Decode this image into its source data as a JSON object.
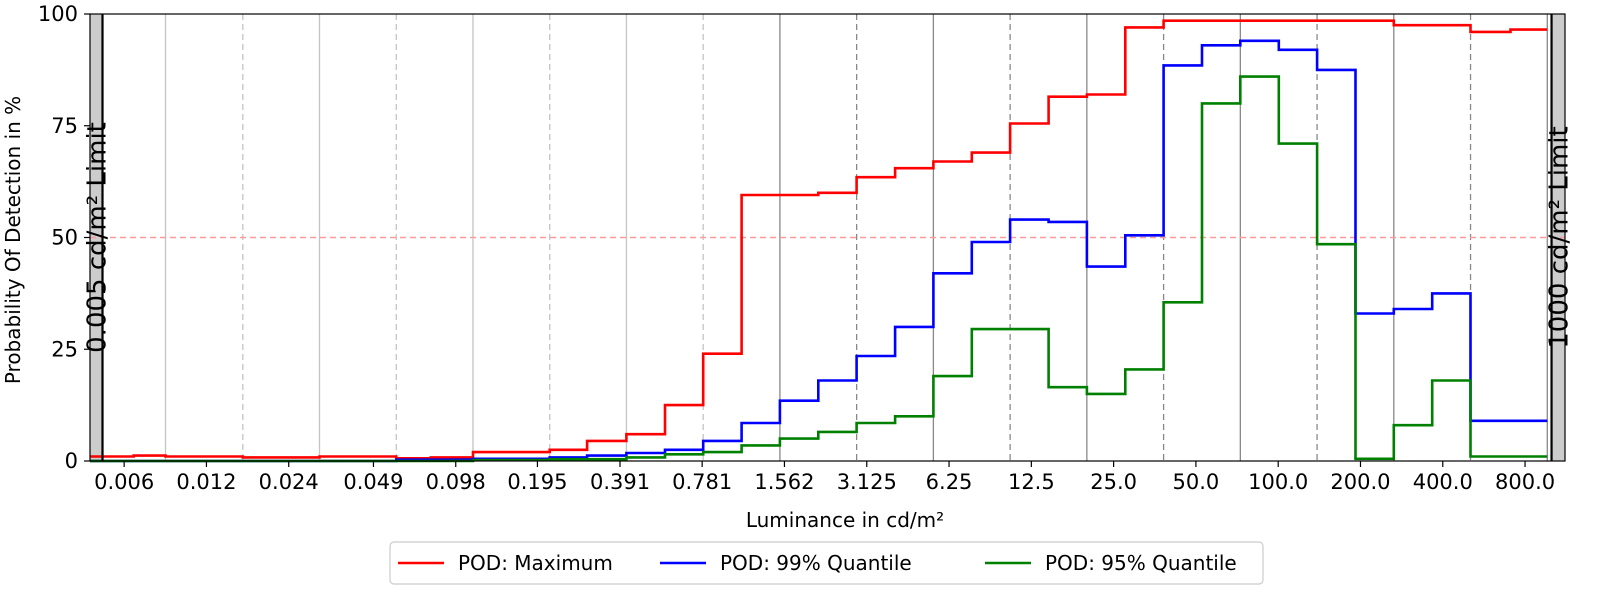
{
  "chart_data": {
    "type": "line",
    "step": true,
    "xlabel": "Luminance in cd/m²",
    "ylabel": "Probability Of Detection in %",
    "ylim": [
      0,
      100
    ],
    "y_ticks": [
      0,
      25,
      50,
      75,
      100
    ],
    "x_scale": "log2",
    "x_ticks": [
      "0.006",
      "0.012",
      "0.024",
      "0.049",
      "0.098",
      "0.195",
      "0.391",
      "0.781",
      "1.562",
      "3.125",
      "6.25",
      "12.5",
      "25.0",
      "50.0",
      "100.0",
      "200.0",
      "400.0",
      "800.0"
    ],
    "x_tick_values": [
      0.006,
      0.012,
      0.024,
      0.049,
      0.098,
      0.195,
      0.391,
      0.781,
      1.562,
      3.125,
      6.25,
      12.5,
      25.0,
      50.0,
      100.0,
      200.0,
      400.0,
      800.0
    ],
    "bin_edges": [
      0.0045,
      0.0085,
      0.0163,
      0.0311,
      0.0594,
      0.1133,
      0.2163,
      0.4127,
      0.7878,
      1.5035,
      2.8697,
      5.4774,
      10.454,
      19.953,
      38.083,
      72.688,
      138.74,
      264.81,
      505.42,
      964.67
    ],
    "threshold": {
      "value": 50,
      "style": "dashed",
      "color": "#ff9a9a"
    },
    "limits": [
      {
        "label": "0.005 cd/m² Limit",
        "x": 0.005,
        "side": "left"
      },
      {
        "label": "1000 cd/m² Limit",
        "x": 1000,
        "side": "right"
      }
    ],
    "series": [
      {
        "name": "POD: Maximum",
        "color": "#ff0000",
        "values": [
          1.2,
          1.0,
          1.0,
          1.0,
          0.8,
          2.0,
          2.5,
          4.5,
          6.0,
          12.5,
          24.0,
          59.5,
          60.0,
          63.5,
          65.5,
          67.0,
          69.0,
          75.5,
          81.5,
          82.0,
          97.0,
          98.5,
          98.5,
          98.5,
          98.5,
          98.5,
          97.5,
          96.5,
          96.5
        ]
      }
    ],
    "series_steps": [
      {
        "name": "POD: Maximum",
        "color": "#ff0000",
        "x": [
          0.0045,
          0.0065,
          0.0085,
          0.0163,
          0.0311,
          0.0594,
          0.0794,
          0.1133,
          0.2163,
          0.2962,
          0.4127,
          0.571,
          0.7878,
          1.0884,
          1.5035,
          2.0784,
          2.8697,
          3.966,
          5.4774,
          7.5716,
          10.454,
          14.452,
          19.953,
          27.579,
          38.083,
          52.646,
          72.688,
          138.74,
          264.81,
          505.42,
          707.8,
          964.67
        ],
        "y": [
          1.0,
          1.2,
          1.0,
          0.8,
          1.0,
          0.6,
          0.8,
          2.0,
          2.5,
          4.5,
          6.0,
          12.5,
          24.0,
          59.5,
          59.5,
          60.0,
          63.5,
          65.5,
          67.0,
          69.0,
          75.5,
          81.5,
          82.0,
          97.0,
          98.5,
          98.5,
          98.5,
          98.5,
          97.5,
          96.0,
          96.5,
          96.5
        ]
      },
      {
        "name": "POD: 99% Quantile",
        "color": "#0000ff",
        "x": [
          0.0045,
          0.0594,
          0.1133,
          0.2163,
          0.2962,
          0.4127,
          0.571,
          0.7878,
          1.0884,
          1.5035,
          2.0784,
          2.8697,
          3.966,
          5.4774,
          7.5716,
          10.454,
          14.452,
          19.953,
          27.579,
          38.083,
          52.646,
          72.688,
          100.5,
          138.74,
          191.8,
          264.81,
          366.0,
          505.42,
          707.8,
          964.67
        ],
        "y": [
          0.0,
          0.3,
          0.5,
          0.8,
          1.2,
          1.8,
          2.5,
          4.5,
          8.5,
          13.5,
          18.0,
          23.5,
          30.0,
          42.0,
          49.0,
          54.0,
          53.5,
          43.5,
          50.5,
          88.5,
          93.0,
          94.0,
          92.0,
          87.5,
          33.0,
          34.0,
          37.5,
          9.0,
          9.0,
          9.0
        ]
      },
      {
        "name": "POD: 95% Quantile",
        "color": "#008000",
        "x": [
          0.0045,
          0.1133,
          0.2163,
          0.4127,
          0.571,
          0.7878,
          1.0884,
          1.5035,
          2.0784,
          2.8697,
          3.966,
          5.4774,
          7.5716,
          10.454,
          14.452,
          19.953,
          27.579,
          38.083,
          52.646,
          72.688,
          100.5,
          138.74,
          191.8,
          264.81,
          366.0,
          505.42,
          707.8,
          964.67
        ],
        "y": [
          0.0,
          0.2,
          0.4,
          0.8,
          1.5,
          2.0,
          3.5,
          5.0,
          6.5,
          8.5,
          10.0,
          19.0,
          29.5,
          29.5,
          16.5,
          15.0,
          20.5,
          35.5,
          80.0,
          86.0,
          71.0,
          48.5,
          0.5,
          8.0,
          18.0,
          1.0,
          1.0,
          1.0
        ]
      }
    ],
    "legend": {
      "placement": "bottom-center",
      "entries": [
        "POD: Maximum",
        "POD: 99% Quantile",
        "POD: 95% Quantile"
      ]
    },
    "grid": "vertical"
  }
}
